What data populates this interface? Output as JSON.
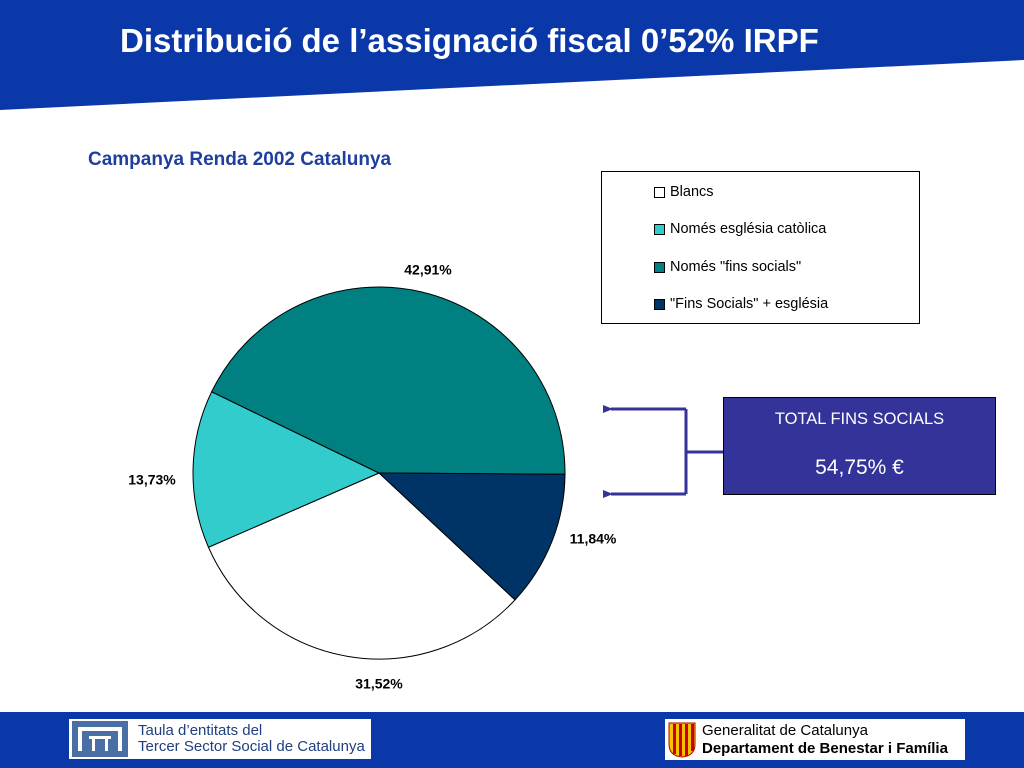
{
  "title": "Distribució de l’assignació fiscal 0’52% IRPF",
  "colors": {
    "header": "#0a38a8",
    "accent_text": "#1f3f9f",
    "total_box": "#333399",
    "connector": "#333399"
  },
  "chart_data": {
    "type": "pie",
    "title": "Campanya Renda 2002 Catalunya",
    "legend_position": "top-right",
    "slices": [
      {
        "name": "Blancs",
        "value": 31.52,
        "label": "31,52%",
        "color": "#ffffff"
      },
      {
        "name": "Només església catòlica",
        "value": 13.73,
        "label": "13,73%",
        "color": "#33cccc"
      },
      {
        "name": "Només \"fins socials\"",
        "value": 42.91,
        "label": "42,91%",
        "color": "#008080"
      },
      {
        "name": "\"Fins Socials\" + església",
        "value": 11.84,
        "label": "11,84%",
        "color": "#003366"
      }
    ]
  },
  "legend": [
    {
      "label": "Blancs",
      "color": "#ffffff"
    },
    {
      "label": "Només església catòlica",
      "color": "#33cccc"
    },
    {
      "label": "Només \"fins socials\"",
      "color": "#008080"
    },
    {
      "label": "\"Fins Socials\" + església",
      "color": "#003366"
    }
  ],
  "total_box": {
    "label": "TOTAL FINS SOCIALS",
    "value": "54,75% €"
  },
  "footer": {
    "taula_line1": "Taula d’entitats del",
    "taula_line2": "Tercer Sector Social de Catalunya",
    "gencat_line1": "Generalitat de Catalunya",
    "gencat_line2": "Departament de Benestar i Família"
  }
}
